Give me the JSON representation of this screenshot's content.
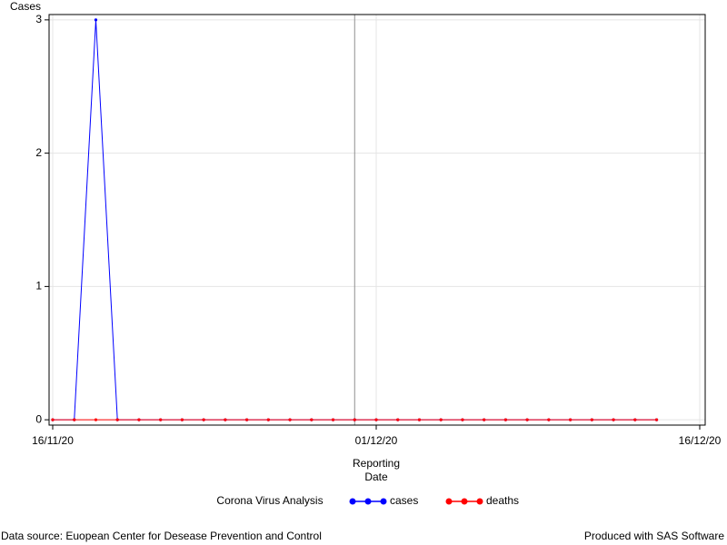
{
  "chart_data": {
    "type": "line",
    "y_label": "Cases",
    "x_label": [
      "Reporting",
      "Date"
    ],
    "legend_title": "Corona Virus Analysis",
    "footnote_left": "Data source: Euopean Center for Desease Prevention and Control",
    "footnote_right": "Produced with SAS Software",
    "x": [
      "2020-11-16",
      "2020-11-17",
      "2020-11-18",
      "2020-11-19",
      "2020-11-20",
      "2020-11-21",
      "2020-11-22",
      "2020-11-23",
      "2020-11-24",
      "2020-11-25",
      "2020-11-26",
      "2020-11-27",
      "2020-11-28",
      "2020-11-29",
      "2020-11-30",
      "2020-12-01",
      "2020-12-02",
      "2020-12-03",
      "2020-12-04",
      "2020-12-05",
      "2020-12-06",
      "2020-12-07",
      "2020-12-08",
      "2020-12-09",
      "2020-12-10",
      "2020-12-11",
      "2020-12-12",
      "2020-12-13",
      "2020-12-14"
    ],
    "series": [
      {
        "name": "cases",
        "color": "#0000ff",
        "values": [
          0,
          0,
          3,
          0,
          0,
          0,
          0,
          0,
          0,
          0,
          0,
          0,
          0,
          0,
          0,
          0,
          0,
          0,
          0,
          0,
          0,
          0,
          0,
          0,
          0,
          0,
          0,
          0,
          0
        ]
      },
      {
        "name": "deaths",
        "color": "#ff0000",
        "values": [
          0,
          0,
          0,
          0,
          0,
          0,
          0,
          0,
          0,
          0,
          0,
          0,
          0,
          0,
          0,
          0,
          0,
          0,
          0,
          0,
          0,
          0,
          0,
          0,
          0,
          0,
          0,
          0,
          0
        ]
      }
    ],
    "reference_line": "2020-11-30",
    "xlim": [
      "2020-11-16",
      "2020-12-16"
    ],
    "xticks": [
      {
        "value": "2020-11-16",
        "label": "16/11/20"
      },
      {
        "value": "2020-12-01",
        "label": "01/12/20"
      },
      {
        "value": "2020-12-16",
        "label": "16/12/20"
      }
    ],
    "ylim": [
      -0.04,
      3.04
    ],
    "yticks": [
      0,
      1,
      2,
      3
    ],
    "grid": true
  }
}
